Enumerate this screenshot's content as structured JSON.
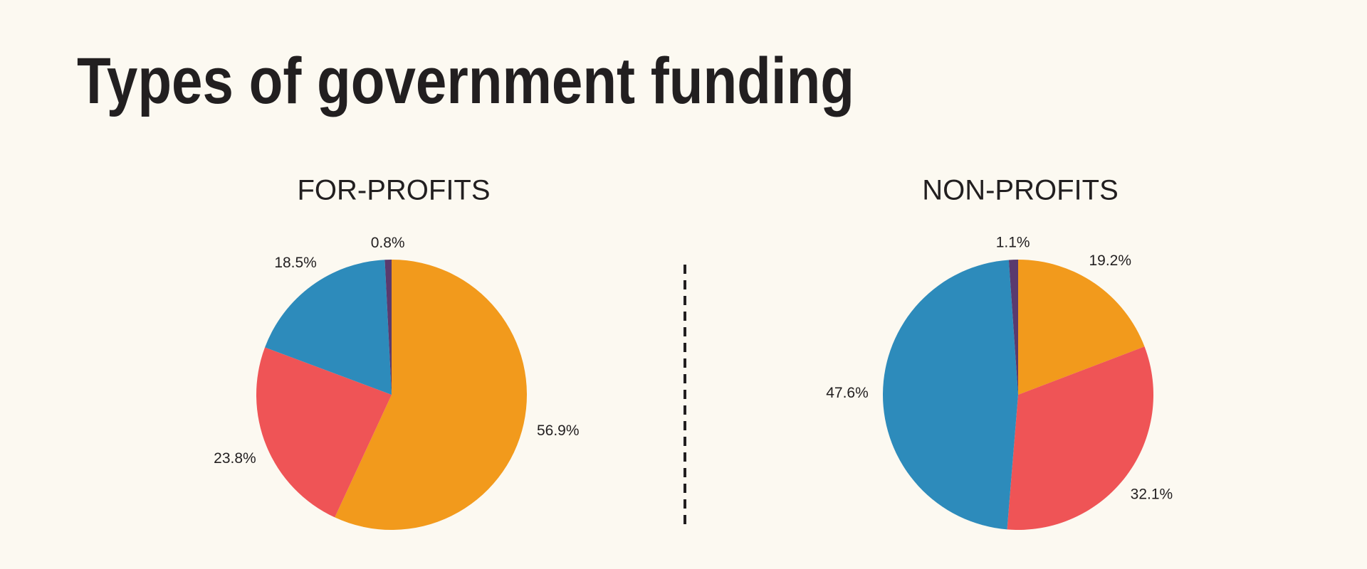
{
  "title": "Types of government funding",
  "chart_data": [
    {
      "type": "pie",
      "title": "FOR-PROFITS",
      "values": [
        56.9,
        23.8,
        18.5,
        0.8
      ],
      "value_labels": [
        "56.9%",
        "23.8%",
        "18.5%",
        "0.8%"
      ],
      "colors": [
        "#f29a1c",
        "#ef5456",
        "#2d8bbb",
        "#5a3a6e"
      ]
    },
    {
      "type": "pie",
      "title": "NON-PROFITS",
      "values": [
        19.2,
        32.1,
        47.6,
        1.1
      ],
      "value_labels": [
        "19.2%",
        "32.1%",
        "47.6%",
        "1.1%"
      ],
      "colors": [
        "#f29a1c",
        "#ef5456",
        "#2d8bbb",
        "#5a3a6e"
      ]
    }
  ]
}
